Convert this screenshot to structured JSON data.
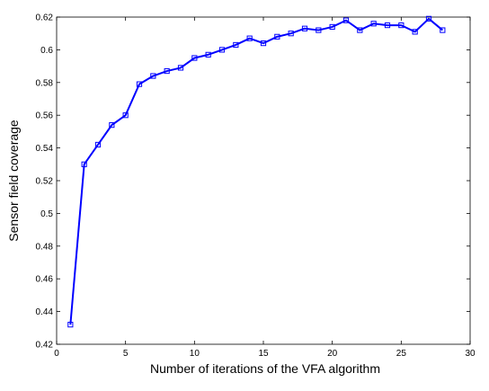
{
  "chart_data": {
    "type": "line",
    "title": "",
    "xlabel": "Number of iterations of the VFA algorithm",
    "ylabel": "Sensor field coverage",
    "xlim": [
      0,
      30
    ],
    "ylim": [
      0.42,
      0.62
    ],
    "xticks": [
      0,
      5,
      10,
      15,
      20,
      25,
      30
    ],
    "xtick_labels": [
      "0",
      "5",
      "10",
      "15",
      "20",
      "25",
      "30"
    ],
    "yticks": [
      0.42,
      0.44,
      0.46,
      0.48,
      0.5,
      0.52,
      0.54,
      0.56,
      0.58,
      0.6,
      0.62
    ],
    "ytick_labels": [
      "0.42",
      "0.44",
      "0.46",
      "0.48",
      "0.5",
      "0.52",
      "0.54",
      "0.56",
      "0.58",
      "0.6",
      "0.62"
    ],
    "grid": false,
    "line_color": "#0000ff",
    "marker": "square",
    "series": [
      {
        "x": [
          1,
          2,
          3,
          4,
          5,
          6,
          7,
          8,
          9,
          10,
          11,
          12,
          13,
          14,
          15,
          16,
          17,
          18,
          19,
          20,
          21,
          22,
          23,
          24,
          25,
          26,
          27,
          28
        ],
        "values": [
          0.432,
          0.53,
          0.542,
          0.554,
          0.56,
          0.579,
          0.584,
          0.587,
          0.589,
          0.595,
          0.597,
          0.6,
          0.603,
          0.607,
          0.604,
          0.608,
          0.61,
          0.613,
          0.612,
          0.614,
          0.618,
          0.612,
          0.616,
          0.615,
          0.615,
          0.611,
          0.619,
          0.612
        ]
      }
    ]
  }
}
